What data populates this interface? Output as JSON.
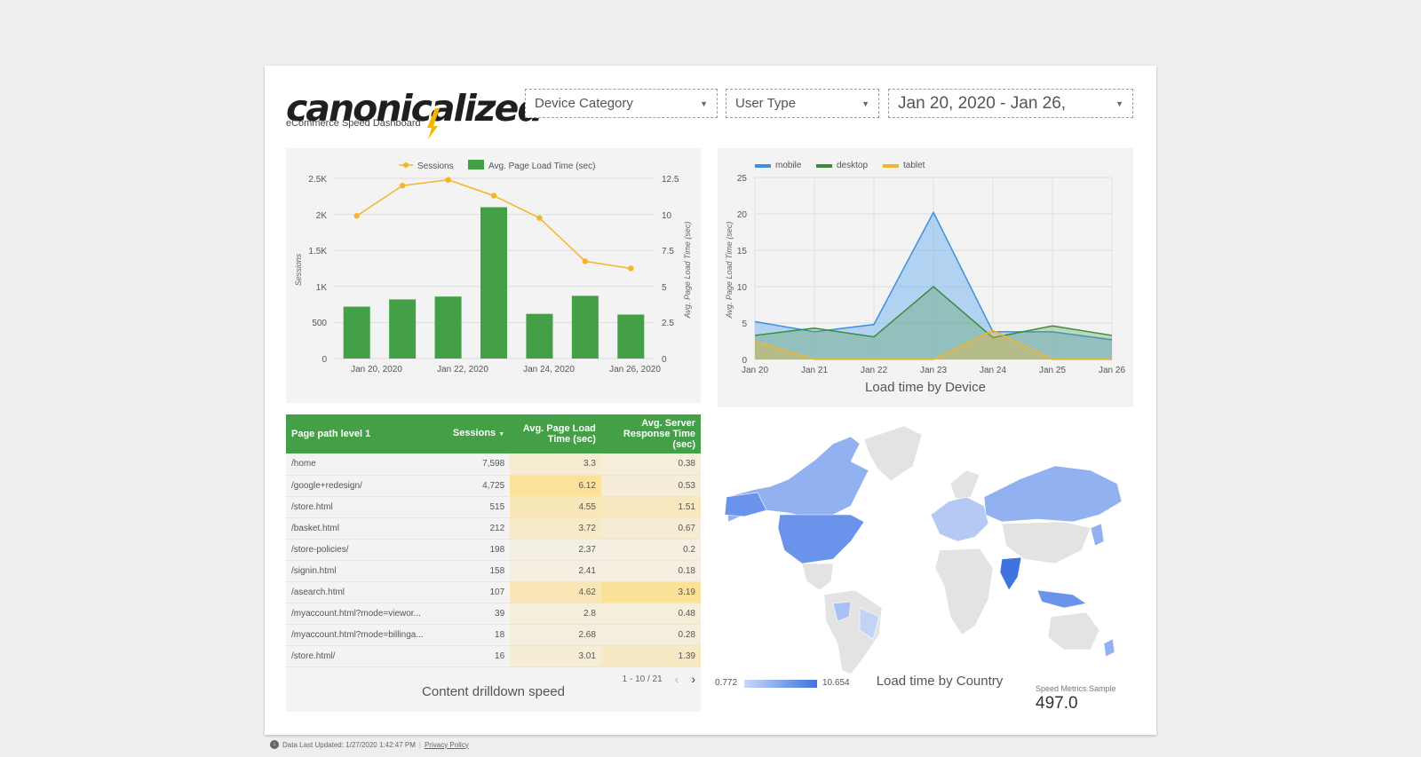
{
  "header": {
    "logo_text": "canonicalized",
    "subtitle": "eCommerce Speed Dashboard"
  },
  "filters": {
    "device": "Device Category",
    "user_type": "User Type",
    "date_range": "Jan 20, 2020 - Jan 26,"
  },
  "colors": {
    "green": "#43a047",
    "orange": "#f5b52a",
    "blue": "#4a8fe7",
    "mobile": "#3d8fe0",
    "desktop": "#3a8c3a",
    "tablet": "#f5b52a"
  },
  "combo_chart": {
    "legend_sessions": "Sessions",
    "legend_load": "Avg. Page Load Time (sec)",
    "ylabel_left": "Sessions",
    "ylabel_right": "Avg. Page Load Time (sec)",
    "left_ticks": [
      "0",
      "500",
      "1K",
      "1.5K",
      "2K",
      "2.5K"
    ],
    "right_ticks": [
      "0",
      "2.5",
      "5",
      "7.5",
      "10",
      "12.5"
    ],
    "x_labels": [
      "Jan 20, 2020",
      "Jan 22, 2020",
      "Jan 24, 2020",
      "Jan 26, 2020"
    ]
  },
  "device_chart": {
    "title": "Load time by Device",
    "ylabel": "Avg. Page Load Time (sec)",
    "legend_mobile": "mobile",
    "legend_desktop": "desktop",
    "legend_tablet": "tablet",
    "y_ticks": [
      "0",
      "5",
      "10",
      "15",
      "20",
      "25"
    ],
    "x_ticks": [
      "Jan 20",
      "Jan 21",
      "Jan 22",
      "Jan 23",
      "Jan 24",
      "Jan 25",
      "Jan 26"
    ]
  },
  "table": {
    "headers": {
      "path": "Page path level 1",
      "sessions": "Sessions",
      "load": "Avg. Page Load Time (sec)",
      "server": "Avg. Server Response Time (sec)"
    },
    "rows": [
      {
        "path": "/home",
        "sessions": "7,598",
        "load": "3.3",
        "server": "0.38"
      },
      {
        "path": "/google+redesign/",
        "sessions": "4,725",
        "load": "6.12",
        "server": "0.53"
      },
      {
        "path": "/store.html",
        "sessions": "515",
        "load": "4.55",
        "server": "1.51"
      },
      {
        "path": "/basket.html",
        "sessions": "212",
        "load": "3.72",
        "server": "0.67"
      },
      {
        "path": "/store-policies/",
        "sessions": "198",
        "load": "2.37",
        "server": "0.2"
      },
      {
        "path": "/signin.html",
        "sessions": "158",
        "load": "2.41",
        "server": "0.18"
      },
      {
        "path": "/asearch.html",
        "sessions": "107",
        "load": "4.62",
        "server": "3.19"
      },
      {
        "path": "/myaccount.html?mode=viewor...",
        "sessions": "39",
        "load": "2.8",
        "server": "0.48"
      },
      {
        "path": "/myaccount.html?mode=billinga...",
        "sessions": "18",
        "load": "2.68",
        "server": "0.28"
      },
      {
        "path": "/store.html/",
        "sessions": "16",
        "load": "3.01",
        "server": "1.39"
      }
    ],
    "pagination": "1 - 10 / 21",
    "title": "Content drilldown speed"
  },
  "map": {
    "title": "Load time by Country",
    "legend_min": "0.772",
    "legend_max": "10.654"
  },
  "scorecard": {
    "label": "Speed Metrics Sample",
    "value": "497.0"
  },
  "footer": {
    "updated": "Data Last Updated: 1/27/2020 1:42:47 PM",
    "privacy": "Privacy Policy"
  },
  "chart_data": [
    {
      "type": "bar",
      "title": "",
      "categories": [
        "Jan 20, 2020",
        "Jan 21, 2020",
        "Jan 22, 2020",
        "Jan 23, 2020",
        "Jan 24, 2020",
        "Jan 25, 2020",
        "Jan 26, 2020"
      ],
      "series": [
        {
          "name": "Avg. Page Load Time (sec)",
          "kind": "bar",
          "axis": "right",
          "values": [
            3.6,
            4.1,
            4.3,
            10.5,
            3.1,
            4.35,
            3.05
          ]
        },
        {
          "name": "Sessions",
          "kind": "line",
          "axis": "left",
          "values": [
            1980,
            2400,
            2480,
            2260,
            1950,
            1350,
            1250
          ]
        }
      ],
      "ylabel": "Sessions",
      "ylabel_right": "Avg. Page Load Time (sec)",
      "ylim": [
        0,
        2500
      ],
      "ylim_right": [
        0,
        12.5
      ]
    },
    {
      "type": "area",
      "title": "Load time by Device",
      "x": [
        "Jan 20",
        "Jan 21",
        "Jan 22",
        "Jan 23",
        "Jan 24",
        "Jan 25",
        "Jan 26"
      ],
      "series": [
        {
          "name": "mobile",
          "values": [
            5.2,
            3.8,
            4.8,
            20.2,
            3.8,
            3.8,
            2.7
          ]
        },
        {
          "name": "desktop",
          "values": [
            3.3,
            4.3,
            3.1,
            10.0,
            3.0,
            4.6,
            3.3
          ]
        },
        {
          "name": "tablet",
          "values": [
            2.5,
            0,
            0,
            0,
            4.0,
            0,
            0
          ]
        }
      ],
      "ylabel": "Avg. Page Load Time (sec)",
      "ylim": [
        0,
        25
      ]
    }
  ]
}
